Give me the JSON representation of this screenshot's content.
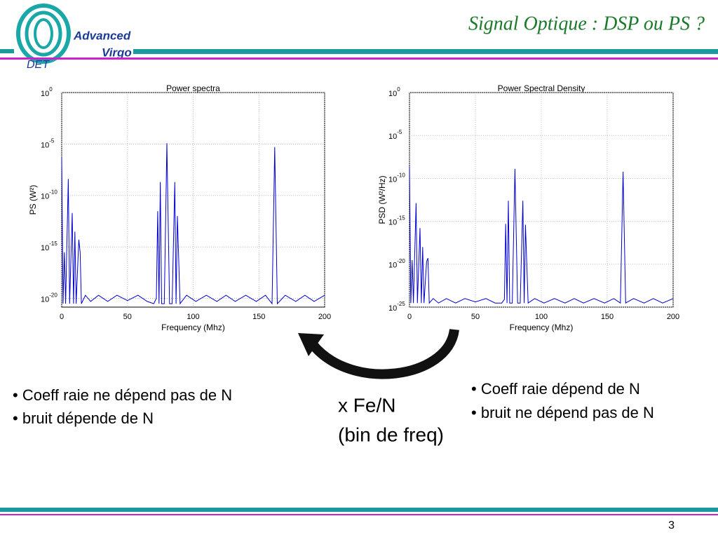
{
  "header": {
    "title": "Signal Optique : DSP ou PS ?",
    "logo": [
      "Advanced",
      "Virgo",
      "DET"
    ]
  },
  "chart_data": [
    {
      "type": "line",
      "title": "Power spectra",
      "xlabel": "Frequency (Mhz)",
      "ylabel": "PS (W²)",
      "log_y": true,
      "grid": true,
      "xlim": [
        0,
        200
      ],
      "xticks": [
        0,
        50,
        100,
        150,
        200
      ],
      "ylim": [
        1.4e-21,
        1
      ],
      "yticks": [
        {
          "value": 1,
          "label": "10^0"
        },
        {
          "value": 1e-05,
          "label": "10^-5"
        },
        {
          "value": 1e-10,
          "label": "10^-10"
        },
        {
          "value": 1e-15,
          "label": "10^-15"
        },
        {
          "value": 1e-20,
          "label": "10^-20"
        }
      ],
      "x": [
        0,
        1,
        2,
        3,
        5,
        6,
        8,
        9,
        10,
        11,
        13,
        14,
        15,
        18,
        22,
        28,
        35,
        42,
        50,
        58,
        65,
        70,
        72,
        73,
        74,
        75,
        76,
        78,
        80,
        82,
        84,
        86,
        87,
        88,
        90,
        95,
        102,
        110,
        118,
        125,
        132,
        140,
        148,
        155,
        160,
        162,
        164,
        170,
        178,
        185,
        192,
        200
      ],
      "series": [
        {
          "color": "#0000cc",
          "values": [
            5e-07,
            3e-21,
            3e-16,
            3e-21,
            4e-09,
            3e-21,
            2e-12,
            3e-21,
            3e-14,
            3e-21,
            5e-15,
            3e-16,
            3e-21,
            2e-20,
            5e-21,
            2e-20,
            5e-21,
            2e-20,
            6e-21,
            2e-20,
            5e-21,
            3e-21,
            1e-20,
            3e-12,
            3e-21,
            2e-09,
            3e-21,
            3e-21,
            1.2e-05,
            3e-21,
            3e-21,
            2e-09,
            3e-21,
            1e-12,
            3e-21,
            2e-20,
            5e-21,
            2e-20,
            5e-21,
            2e-20,
            5e-21,
            2e-20,
            5e-21,
            2e-20,
            3e-21,
            5e-06,
            3e-21,
            2e-20,
            5e-21,
            2e-20,
            5e-21,
            2e-20
          ]
        }
      ]
    },
    {
      "type": "line",
      "title": "Power Spectral Density",
      "xlabel": "Frequency (Mhz)",
      "ylabel": "PSD (W²/Hz)",
      "log_y": true,
      "grid": true,
      "xlim": [
        0,
        200
      ],
      "xticks": [
        0,
        50,
        100,
        150,
        200
      ],
      "ylim": [
        1e-25,
        1
      ],
      "yticks": [
        {
          "value": 1,
          "label": "10^0"
        },
        {
          "value": 1e-05,
          "label": "10^-5"
        },
        {
          "value": 1e-10,
          "label": "10^-10"
        },
        {
          "value": 1e-15,
          "label": "10^-15"
        },
        {
          "value": 1e-20,
          "label": "10^-20"
        },
        {
          "value": 1e-25,
          "label": "10^-25"
        }
      ],
      "x": [
        0,
        1,
        2,
        3,
        5,
        6,
        8,
        9,
        10,
        11,
        13,
        14,
        15,
        18,
        22,
        28,
        35,
        42,
        50,
        58,
        65,
        70,
        72,
        73,
        74,
        75,
        76,
        78,
        80,
        82,
        84,
        86,
        87,
        88,
        90,
        95,
        102,
        110,
        118,
        125,
        132,
        140,
        148,
        155,
        160,
        162,
        164,
        170,
        178,
        185,
        192,
        200
      ],
      "series": [
        {
          "color": "#0000cc",
          "values": [
            2.5e-09,
            3e-25,
            3e-20,
            3e-25,
            1.3e-13,
            3e-25,
            1.6e-16,
            3e-25,
            1e-18,
            3e-25,
            2e-20,
            5e-20,
            3e-25,
            1e-24,
            3e-25,
            1e-24,
            3e-25,
            1e-24,
            4e-25,
            1e-24,
            3e-25,
            3e-25,
            8e-25,
            5e-16,
            3e-25,
            2.5e-13,
            3e-25,
            3e-25,
            1.3e-09,
            3e-25,
            3e-25,
            2.5e-13,
            3e-25,
            4e-16,
            3e-25,
            1e-24,
            3e-25,
            1e-24,
            3e-25,
            1e-24,
            3e-25,
            1e-24,
            3e-25,
            1e-24,
            3e-25,
            6e-10,
            3e-25,
            1e-24,
            3e-25,
            1e-24,
            3e-25,
            1e-24
          ]
        }
      ]
    }
  ],
  "left_bullets": [
    "Coeff raie ne dépend pas de N",
    "bruit dépende de N"
  ],
  "right_bullets": [
    "Coeff raie dépend de N",
    "bruit ne dépend pas de N"
  ],
  "center_note": [
    "x Fe/N",
    "(bin de freq)"
  ],
  "page_number": "3"
}
